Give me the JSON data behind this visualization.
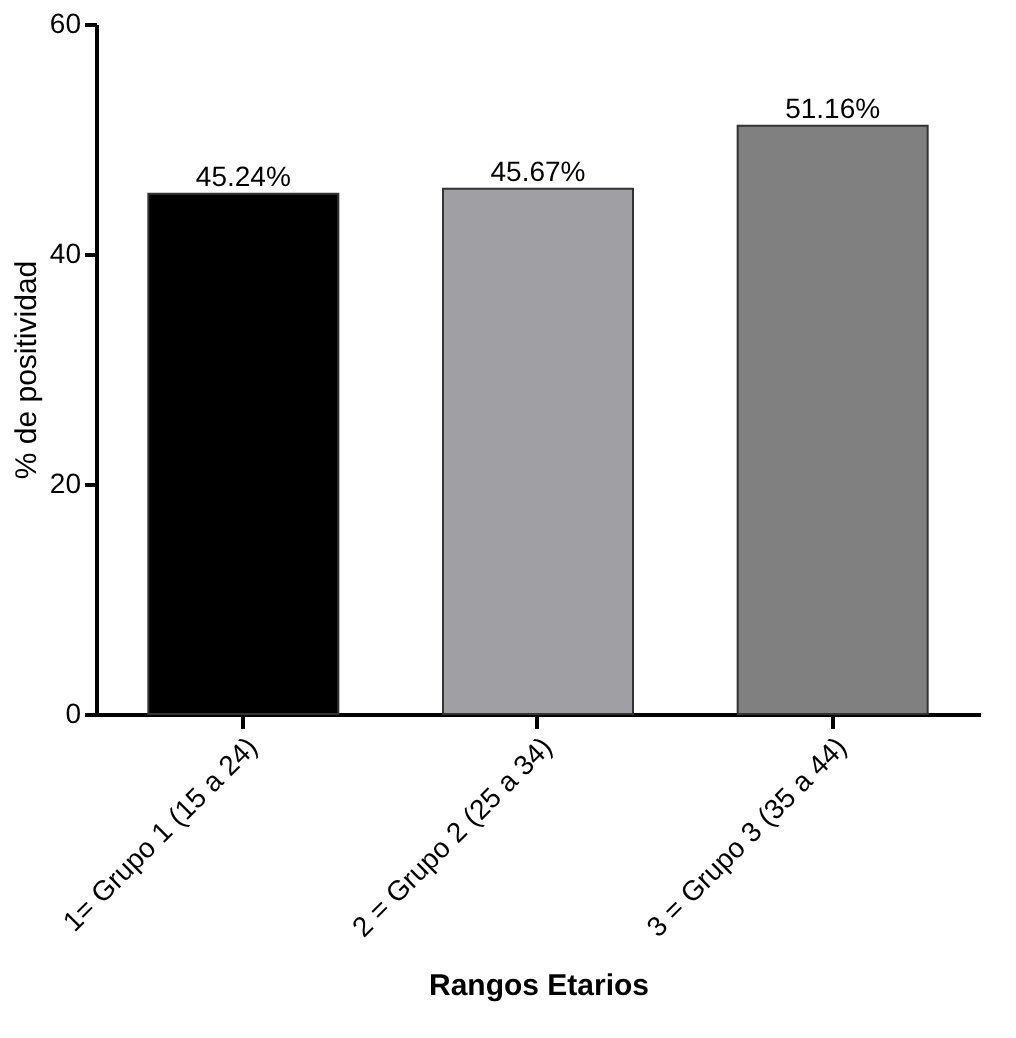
{
  "chart_data": {
    "type": "bar",
    "xlabel": "Rangos Etarios",
    "ylabel": "% de positividad",
    "categories": [
      "1= Grupo 1 (15 a 24)",
      "2 = Grupo 2 (25 a 34)",
      "3 = Grupo 3 (35 a 44)"
    ],
    "values": [
      45.24,
      45.67,
      51.16
    ],
    "colors": [
      "#000000",
      "#a0a0a4",
      "#808080"
    ],
    "value_labels": [
      "45.24%",
      "45.67%",
      "51.16%"
    ],
    "ylim": [
      0,
      60
    ],
    "yticks": [
      0,
      20,
      40,
      60
    ],
    "grid": false,
    "legend": false
  }
}
